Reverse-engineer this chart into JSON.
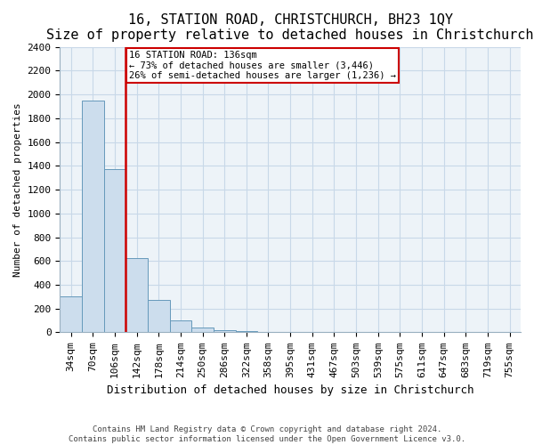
{
  "title": "16, STATION ROAD, CHRISTCHURCH, BH23 1QY",
  "subtitle": "Size of property relative to detached houses in Christchurch",
  "xlabel": "Distribution of detached houses by size in Christchurch",
  "ylabel": "Number of detached properties",
  "footer1": "Contains HM Land Registry data © Crown copyright and database right 2024.",
  "footer2": "Contains public sector information licensed under the Open Government Licence v3.0.",
  "bin_labels": [
    "34sqm",
    "70sqm",
    "106sqm",
    "142sqm",
    "178sqm",
    "214sqm",
    "250sqm",
    "286sqm",
    "322sqm",
    "358sqm",
    "395sqm",
    "431sqm",
    "467sqm",
    "503sqm",
    "539sqm",
    "575sqm",
    "611sqm",
    "647sqm",
    "683sqm",
    "719sqm",
    "755sqm"
  ],
  "bar_heights": [
    305,
    1950,
    1375,
    625,
    275,
    100,
    40,
    20,
    10,
    5,
    5,
    5,
    5,
    5,
    5,
    5,
    5,
    0,
    0,
    0,
    0
  ],
  "bar_color": "#ccdded",
  "bar_edge_color": "#6699bb",
  "ylim": [
    0,
    2400
  ],
  "yticks": [
    0,
    200,
    400,
    600,
    800,
    1000,
    1200,
    1400,
    1600,
    1800,
    2000,
    2200,
    2400
  ],
  "vline_color": "#cc0000",
  "vline_x": 2.5,
  "annotation_text": "16 STATION ROAD: 136sqm\n← 73% of detached houses are smaller (3,446)\n26% of semi-detached houses are larger (1,236) →",
  "annotation_box_color": "#cc0000",
  "grid_color": "#c8d8e8",
  "bg_color": "#edf3f8",
  "title_fontsize": 11,
  "subtitle_fontsize": 9,
  "tick_fontsize": 8,
  "ylabel_fontsize": 8,
  "xlabel_fontsize": 9
}
